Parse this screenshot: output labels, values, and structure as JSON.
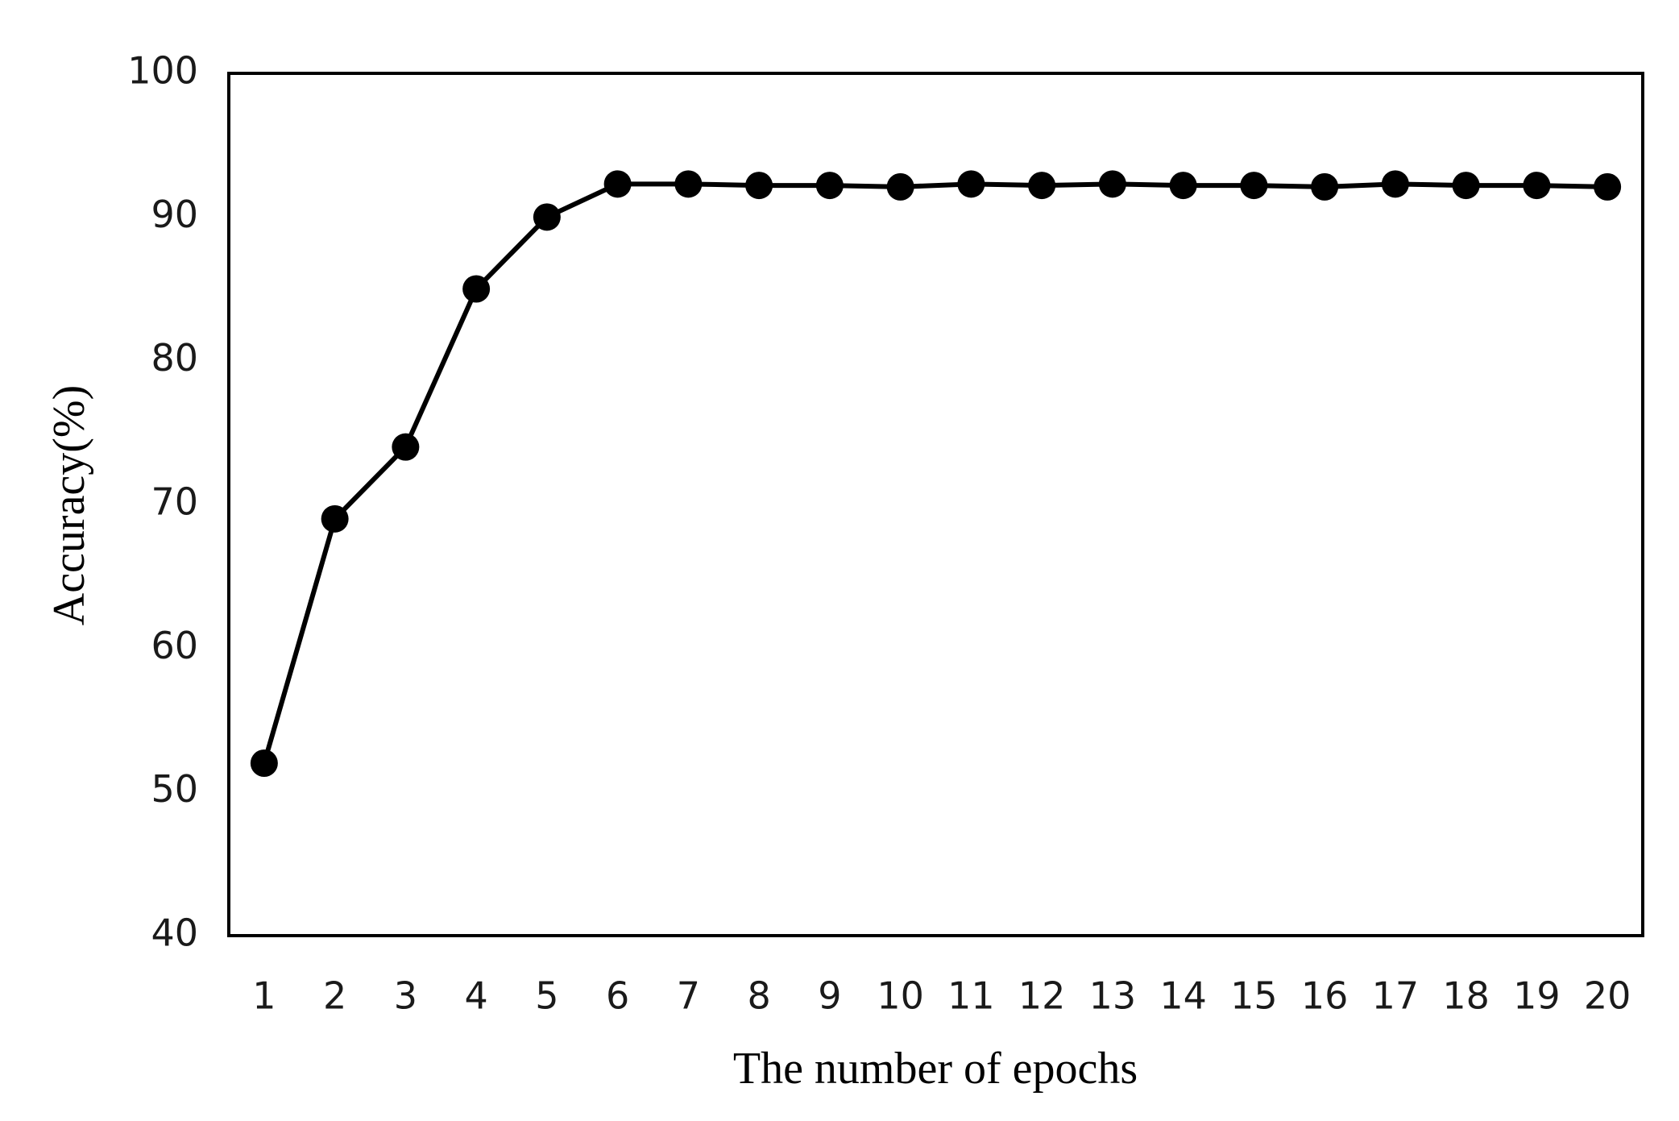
{
  "chart_data": {
    "type": "line",
    "x_label": "The number of epochs",
    "y_label": "Accuracy(%)",
    "categories": [
      "1",
      "2",
      "3",
      "4",
      "5",
      "6",
      "7",
      "8",
      "9",
      "10",
      "11",
      "12",
      "13",
      "14",
      "15",
      "16",
      "17",
      "18",
      "19",
      "20"
    ],
    "series": [
      {
        "name": "Accuracy",
        "color": "#000000",
        "values": [
          52,
          69,
          74,
          85,
          90,
          92.3,
          92.3,
          92.2,
          92.2,
          92.1,
          92.3,
          92.2,
          92.3,
          92.2,
          92.2,
          92.1,
          92.3,
          92.2,
          92.2,
          92.1
        ]
      }
    ],
    "ylim": [
      40,
      100
    ],
    "yticks": [
      40,
      50,
      60,
      70,
      80,
      90,
      100
    ],
    "grid": false
  }
}
